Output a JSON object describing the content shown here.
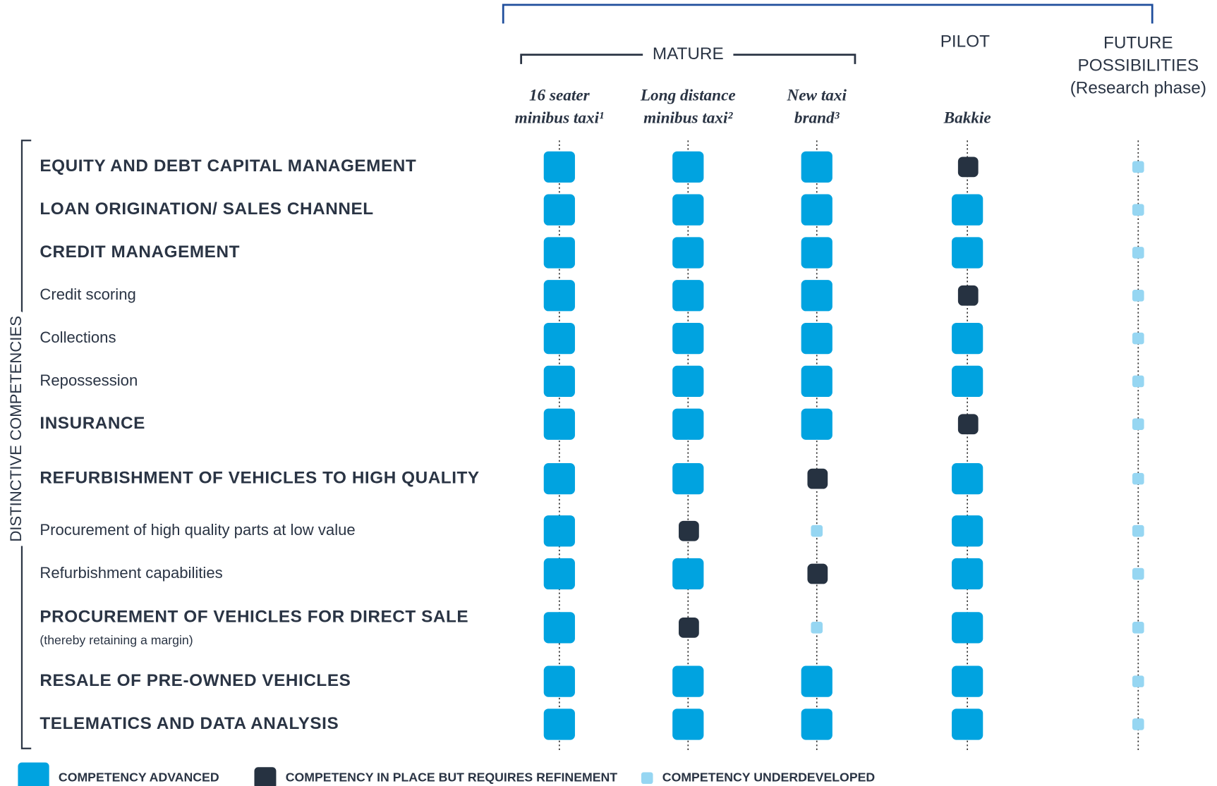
{
  "header": {
    "groups": [
      {
        "label": "MATURE",
        "columns": [
          0,
          1,
          2
        ]
      },
      {
        "label": "PILOT",
        "columns": [
          3
        ]
      },
      {
        "label": [
          "FUTURE",
          "POSSIBILITIES",
          "(Research phase)"
        ],
        "columns": [
          4
        ]
      }
    ],
    "columns": [
      [
        "16 seater",
        "minibus taxi¹"
      ],
      [
        "Long distance",
        "minibus taxi²"
      ],
      [
        "New taxi",
        "brand³"
      ],
      [
        "",
        "Bakkie"
      ],
      null
    ]
  },
  "side_label": "DISTINCTIVE COMPETENCIES",
  "levels": [
    {
      "label": "COMPETENCY ADVANCED",
      "color": "#00a3e0"
    },
    {
      "label": "COMPETENCY IN PLACE BUT REQUIRES REFINEMENT",
      "color": "#263241"
    },
    {
      "label": "COMPETENCY UNDERDEVELOPED",
      "color": "#96d6f2"
    }
  ],
  "rows": [
    {
      "label": "EQUITY AND DEBT CAPITAL MANAGEMENT",
      "cells": [
        0,
        0,
        0,
        1,
        2
      ]
    },
    {
      "label": "LOAN ORIGINATION/ SALES CHANNEL",
      "cells": [
        0,
        0,
        0,
        0,
        2
      ]
    },
    {
      "label": "CREDIT MANAGEMENT",
      "cells": [
        0,
        0,
        0,
        0,
        2
      ]
    },
    {
      "label": "Credit scoring",
      "cells": [
        0,
        0,
        0,
        1,
        2
      ]
    },
    {
      "label": "Collections",
      "cells": [
        0,
        0,
        0,
        0,
        2
      ]
    },
    {
      "label": "Repossession",
      "cells": [
        0,
        0,
        0,
        0,
        2
      ]
    },
    {
      "label": "INSURANCE",
      "cells": [
        0,
        0,
        0,
        1,
        2
      ]
    },
    {
      "label": "REFURBISHMENT OF VEHICLES TO HIGH QUALITY",
      "cells": [
        0,
        0,
        1,
        0,
        2
      ]
    },
    {
      "label": "Procurement of high quality parts at low value",
      "cells": [
        0,
        1,
        2,
        0,
        2
      ]
    },
    {
      "label": "Refurbishment capabilities",
      "cells": [
        0,
        0,
        1,
        0,
        2
      ]
    },
    {
      "label": "PROCUREMENT OF VEHICLES FOR DIRECT SALE",
      "note": "(thereby retaining a margin)",
      "cells": [
        0,
        1,
        2,
        0,
        2
      ]
    },
    {
      "label": "RESALE OF PRE-OWNED VEHICLES",
      "cells": [
        0,
        0,
        0,
        0,
        2
      ]
    },
    {
      "label": "TELEMATICS AND DATA ANALYSIS",
      "cells": [
        0,
        0,
        0,
        0,
        2
      ]
    }
  ]
}
